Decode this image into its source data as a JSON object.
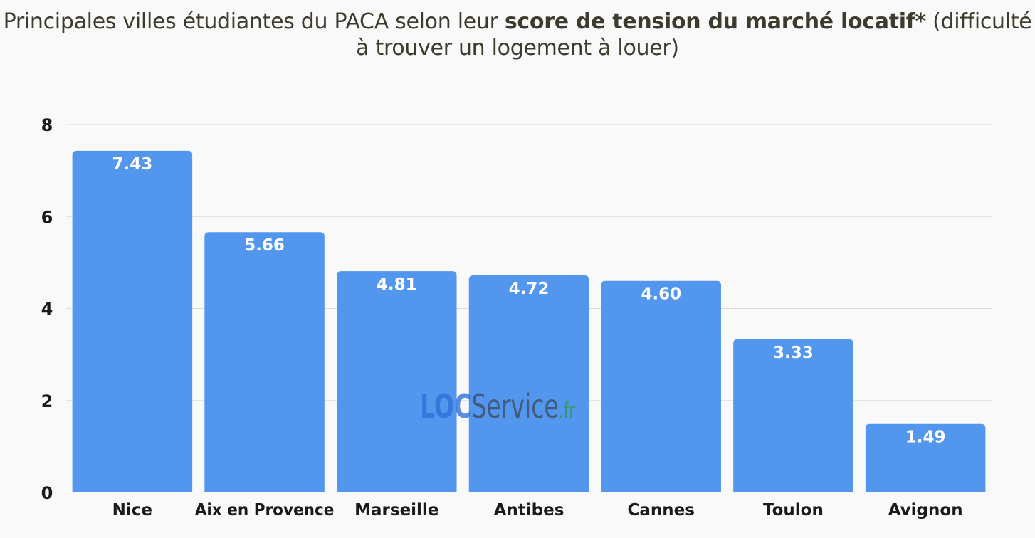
{
  "title": {
    "part1": "Principales villes étudiantes du PACA selon leur ",
    "bold": "score de tension du marché locatif*",
    "part2": " (difficulté à trouver un logement à louer)"
  },
  "watermark": {
    "loc": "LOC",
    "service": "Service",
    "fr": ".fr"
  },
  "colors": {
    "bar": "#5296ed",
    "grid": "#dcdcdc",
    "text": "#1a1a1a",
    "label": "#ffffff"
  },
  "chart_data": {
    "type": "bar",
    "title": "Principales villes étudiantes du PACA selon leur score de tension du marché locatif* (difficulté à trouver un logement à louer)",
    "xlabel": "",
    "ylabel": "",
    "categories": [
      "Nice",
      "Aix en Provence",
      "Marseille",
      "Antibes",
      "Cannes",
      "Toulon",
      "Avignon"
    ],
    "values": [
      7.43,
      5.66,
      4.81,
      4.72,
      4.6,
      3.33,
      1.49
    ],
    "value_labels": [
      "7.43",
      "5.66",
      "4.81",
      "4.72",
      "4.60",
      "3.33",
      "1.49"
    ],
    "ylim": [
      0,
      8
    ],
    "yticks": [
      0,
      2,
      4,
      6,
      8
    ],
    "grid": true,
    "legend": "none"
  }
}
